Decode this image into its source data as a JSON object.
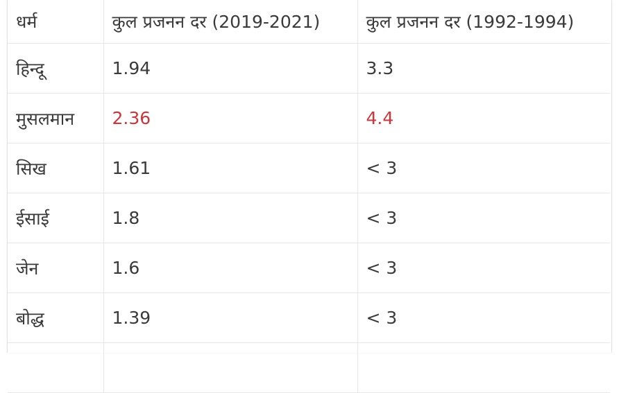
{
  "table": {
    "headers": [
      "धर्म",
      "कुल प्रजनन दर (2019-2021)",
      "कुल प्रजनन दर (1992-1994)"
    ],
    "rows": [
      {
        "religion": "हिन्दू",
        "tfr_2019_2021": "1.94",
        "tfr_1992_1994": "3.3"
      },
      {
        "religion": "मुसलमान",
        "tfr_2019_2021": "2.36",
        "tfr_1992_1994": "4.4"
      },
      {
        "religion": "सिख",
        "tfr_2019_2021": "1.61",
        "tfr_1992_1994": "< 3"
      },
      {
        "religion": "ईसाई",
        "tfr_2019_2021": "1.8",
        "tfr_1992_1994": "< 3"
      },
      {
        "religion": "जेन",
        "tfr_2019_2021": "1.6",
        "tfr_1992_1994": "< 3"
      },
      {
        "religion": "बोद्ध",
        "tfr_2019_2021": "1.39",
        "tfr_1992_1994": "< 3"
      }
    ],
    "highlight_color": "#c8373b",
    "text_color": "#3a3a3a"
  }
}
